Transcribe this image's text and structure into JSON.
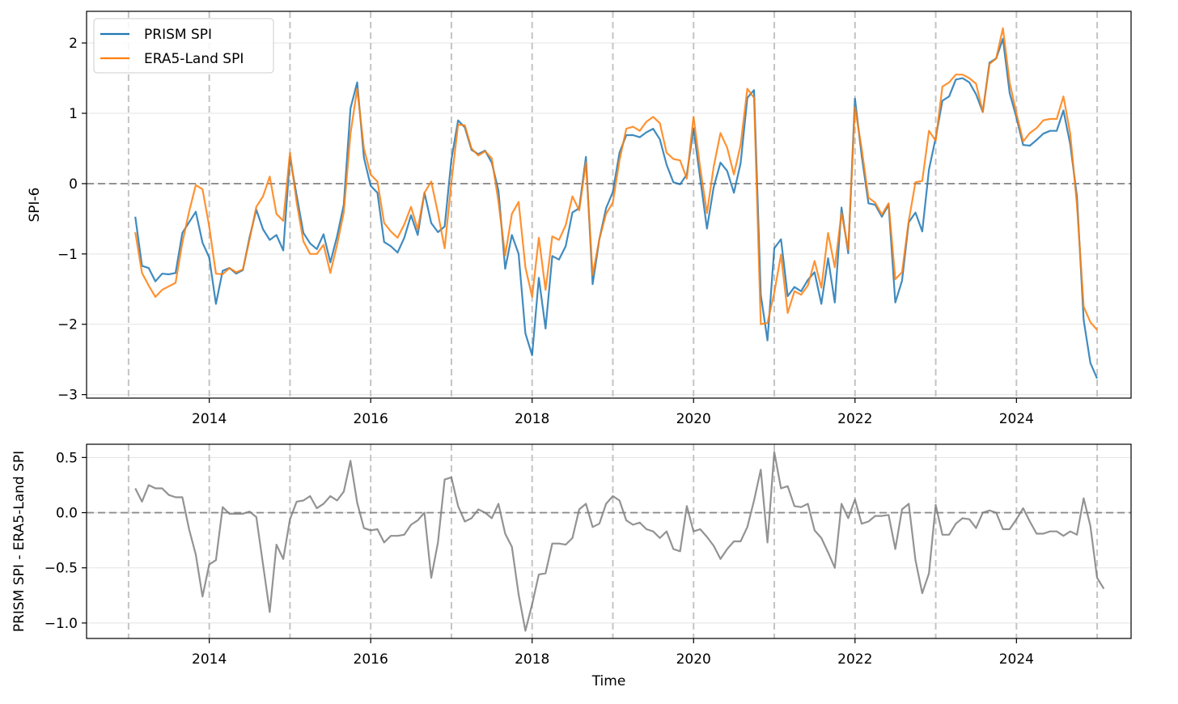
{
  "chart_data": [
    {
      "type": "line",
      "ylabel": "SPI-6",
      "xlim": [
        2012.48,
        2025.42
      ],
      "ylim": [
        -3.05,
        2.45
      ],
      "x_ticks": [
        2014,
        2016,
        2018,
        2020,
        2022,
        2024
      ],
      "y_ticks": [
        -3,
        -2,
        -1,
        0,
        1,
        2
      ],
      "y_tick_labels": [
        "−3",
        "−2",
        "−1",
        "0",
        "1",
        "2"
      ],
      "grid": "horizontal",
      "vlines": [
        2013,
        2014,
        2015,
        2016,
        2017,
        2018,
        2019,
        2020,
        2021,
        2022,
        2023,
        2024,
        2025
      ],
      "hline": 0,
      "legend_position": "top-left",
      "x_start": 2013.083,
      "x_step": 0.08333,
      "series": [
        {
          "name": "PRISM SPI",
          "color": "#1f77b4",
          "values": [
            -0.47,
            -1.17,
            -1.2,
            -1.39,
            -1.28,
            -1.29,
            -1.27,
            -0.7,
            -0.55,
            -0.4,
            -0.84,
            -1.05,
            -1.71,
            -1.24,
            -1.2,
            -1.28,
            -1.23,
            -0.76,
            -0.37,
            -0.65,
            -0.8,
            -0.73,
            -0.95,
            0.38,
            -0.17,
            -0.7,
            -0.85,
            -0.93,
            -0.72,
            -1.12,
            -0.75,
            -0.3,
            1.07,
            1.44,
            0.37,
            -0.03,
            -0.13,
            -0.83,
            -0.89,
            -0.98,
            -0.77,
            -0.45,
            -0.73,
            -0.13,
            -0.56,
            -0.69,
            -0.61,
            0.34,
            0.9,
            0.8,
            0.48,
            0.42,
            0.47,
            0.3,
            -0.1,
            -1.21,
            -0.73,
            -1.0,
            -2.13,
            -2.44,
            -1.34,
            -2.06,
            -1.03,
            -1.08,
            -0.89,
            -0.41,
            -0.35,
            0.38,
            -1.43,
            -0.79,
            -0.35,
            -0.12,
            0.44,
            0.69,
            0.69,
            0.66,
            0.73,
            0.78,
            0.63,
            0.27,
            0.02,
            -0.01,
            0.13,
            0.78,
            0.07,
            -0.64,
            -0.05,
            0.3,
            0.18,
            -0.13,
            0.29,
            1.22,
            1.33,
            -1.58,
            -2.23,
            -0.92,
            -0.79,
            -1.6,
            -1.47,
            -1.53,
            -1.37,
            -1.26,
            -1.71,
            -1.06,
            -1.69,
            -0.34,
            -0.99,
            1.21,
            0.4,
            -0.28,
            -0.3,
            -0.47,
            -0.3,
            -1.69,
            -1.38,
            -0.55,
            -0.41,
            -0.68,
            0.2,
            0.65,
            1.18,
            1.24,
            1.48,
            1.5,
            1.44,
            1.27,
            1.02,
            1.72,
            1.78,
            2.06,
            1.29,
            0.94,
            0.55,
            0.54,
            0.62,
            0.71,
            0.75,
            0.75,
            1.04,
            0.56,
            -0.18,
            -1.94,
            -2.55,
            -2.77
          ]
        },
        {
          "name": "ERA5-Land SPI",
          "color": "#ff7f0e",
          "values": [
            -0.69,
            -1.27,
            -1.45,
            -1.61,
            -1.51,
            -1.46,
            -1.41,
            -0.84,
            -0.4,
            -0.02,
            -0.08,
            -0.61,
            -1.28,
            -1.29,
            -1.2,
            -1.26,
            -1.22,
            -0.79,
            -0.33,
            -0.18,
            0.1,
            -0.43,
            -0.53,
            0.44,
            -0.27,
            -0.82,
            -1.0,
            -1.0,
            -0.87,
            -1.27,
            -0.87,
            -0.41,
            0.71,
            1.35,
            0.5,
            0.13,
            0.03,
            -0.56,
            -0.68,
            -0.77,
            -0.58,
            -0.33,
            -0.65,
            -0.13,
            0.03,
            -0.42,
            -0.92,
            0.02,
            0.84,
            0.83,
            0.5,
            0.4,
            0.46,
            0.36,
            -0.26,
            -1.02,
            -0.43,
            -0.26,
            -1.19,
            -1.61,
            -0.77,
            -1.51,
            -0.75,
            -0.8,
            -0.59,
            -0.18,
            -0.38,
            0.3,
            -1.3,
            -0.79,
            -0.43,
            -0.27,
            0.33,
            0.78,
            0.81,
            0.75,
            0.88,
            0.95,
            0.86,
            0.44,
            0.35,
            0.33,
            0.07,
            0.95,
            0.22,
            -0.42,
            0.24,
            0.72,
            0.51,
            0.13,
            0.55,
            1.35,
            1.22,
            -2.0,
            -1.98,
            -1.55,
            -1.01,
            -1.84,
            -1.53,
            -1.58,
            -1.45,
            -1.1,
            -1.48,
            -0.7,
            -1.19,
            -0.42,
            -0.94,
            1.09,
            0.5,
            -0.2,
            -0.27,
            -0.44,
            -0.28,
            -1.36,
            -1.26,
            -0.53,
            0.02,
            0.04,
            0.75,
            0.61,
            1.38,
            1.44,
            1.55,
            1.55,
            1.5,
            1.42,
            1.02,
            1.7,
            1.78,
            2.21,
            1.44,
            1.0,
            0.6,
            0.72,
            0.79,
            0.9,
            0.92,
            0.92,
            1.24,
            0.71,
            -0.3,
            -1.75,
            -1.97,
            -2.08
          ]
        }
      ]
    },
    {
      "type": "line",
      "xlabel": "Time",
      "ylabel": "PRISM SPI - ERA5-Land SPI",
      "xlim": [
        2012.48,
        2025.42
      ],
      "ylim": [
        -1.14,
        0.62
      ],
      "x_ticks": [
        2014,
        2016,
        2018,
        2020,
        2022,
        2024
      ],
      "y_ticks": [
        -1.0,
        -0.5,
        0.0,
        0.5
      ],
      "y_tick_labels": [
        "−1.0",
        "−0.5",
        "0.0",
        "0.5"
      ],
      "grid": "horizontal",
      "vlines": [
        2013,
        2014,
        2015,
        2016,
        2017,
        2018,
        2019,
        2020,
        2021,
        2022,
        2023,
        2024,
        2025
      ],
      "hline": 0,
      "x_start": 2013.083,
      "x_step": 0.08333,
      "series": [
        {
          "color": "#808080",
          "values": [
            0.22,
            0.1,
            0.25,
            0.22,
            0.22,
            0.16,
            0.14,
            0.14,
            -0.15,
            -0.38,
            -0.76,
            -0.47,
            -0.43,
            0.05,
            -0.01,
            -0.01,
            -0.01,
            0.01,
            -0.04,
            -0.47,
            -0.9,
            -0.29,
            -0.42,
            -0.06,
            0.1,
            0.11,
            0.15,
            0.04,
            0.08,
            0.15,
            0.11,
            0.19,
            0.47,
            0.09,
            -0.14,
            -0.16,
            -0.15,
            -0.27,
            -0.21,
            -0.21,
            -0.2,
            -0.11,
            -0.07,
            0.0,
            -0.59,
            -0.27,
            0.3,
            0.32,
            0.06,
            -0.08,
            -0.05,
            0.03,
            0.0,
            -0.05,
            0.08,
            -0.19,
            -0.31,
            -0.74,
            -1.07,
            -0.83,
            -0.56,
            -0.55,
            -0.28,
            -0.28,
            -0.29,
            -0.23,
            0.03,
            0.08,
            -0.13,
            -0.1,
            0.08,
            0.15,
            0.11,
            -0.07,
            -0.11,
            -0.09,
            -0.15,
            -0.17,
            -0.23,
            -0.17,
            -0.33,
            -0.35,
            0.06,
            -0.17,
            -0.15,
            -0.22,
            -0.3,
            -0.42,
            -0.33,
            -0.26,
            -0.26,
            -0.13,
            0.11,
            0.39,
            -0.27,
            0.55,
            0.22,
            0.24,
            0.06,
            0.05,
            0.08,
            -0.16,
            -0.23,
            -0.36,
            -0.5,
            0.08,
            -0.05,
            0.12,
            -0.1,
            -0.08,
            -0.03,
            -0.03,
            -0.02,
            -0.33,
            0.03,
            0.08,
            -0.43,
            -0.73,
            -0.55,
            0.07,
            -0.2,
            -0.2,
            -0.1,
            -0.05,
            -0.06,
            -0.14,
            0.0,
            0.02,
            0.0,
            -0.15,
            -0.15,
            -0.06,
            0.04,
            -0.08,
            -0.19,
            -0.19,
            -0.17,
            -0.17,
            -0.21,
            -0.17,
            -0.2,
            0.13,
            -0.12,
            -0.59,
            -0.69
          ]
        }
      ]
    }
  ]
}
